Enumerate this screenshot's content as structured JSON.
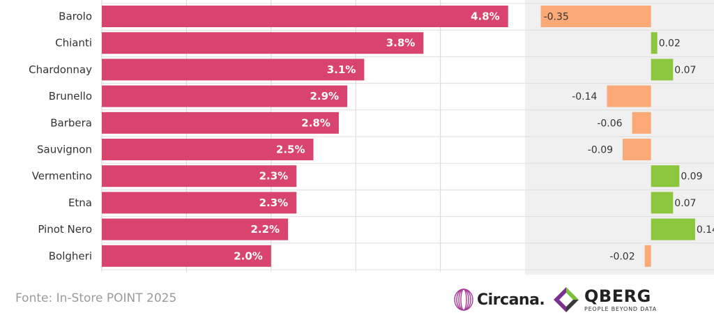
{
  "chart_data": [
    {
      "type": "bar",
      "orientation": "horizontal",
      "categories": [
        "Barolo",
        "Chianti",
        "Chardonnay",
        "Brunello",
        "Barbera",
        "Sauvignon",
        "Vermentino",
        "Etna",
        "Pinot Nero",
        "Bolgheri"
      ],
      "values": [
        4.8,
        3.8,
        3.1,
        2.9,
        2.8,
        2.5,
        2.3,
        2.3,
        2.2,
        2.0
      ],
      "labels": [
        "4.8%",
        "3.8%",
        "3.1%",
        "2.9%",
        "2.8%",
        "2.5%",
        "2.3%",
        "2.3%",
        "2.2%",
        "2.0%"
      ],
      "xlim": [
        0,
        5
      ],
      "grid": true,
      "color": "#d9446f"
    },
    {
      "type": "bar",
      "orientation": "horizontal",
      "categories": [
        "Barolo",
        "Chianti",
        "Chardonnay",
        "Brunello",
        "Barbera",
        "Sauvignon",
        "Vermentino",
        "Etna",
        "Pinot Nero",
        "Bolgheri"
      ],
      "values": [
        -0.35,
        0.02,
        0.07,
        -0.14,
        -0.06,
        -0.09,
        0.09,
        0.07,
        0.14,
        -0.02
      ],
      "labels": [
        "-0.35",
        "0.02",
        "0.07",
        "-0.14",
        "-0.06",
        "-0.09",
        "0.09",
        "0.07",
        "0.14",
        "-0.02"
      ],
      "xlim": [
        -0.4,
        0.2
      ],
      "positive_color": "#8cc63f",
      "negative_color": "#fbaa77",
      "background": "#f0f0f0"
    }
  ],
  "footer": {
    "source": "Fonte: In-Store POINT 2025",
    "circana": "Circana.",
    "qberg": "QBERG",
    "qberg_tagline": "PEOPLE BEYOND DATA"
  },
  "icons": [
    "circana-logo-icon",
    "qberg-logo-icon"
  ]
}
